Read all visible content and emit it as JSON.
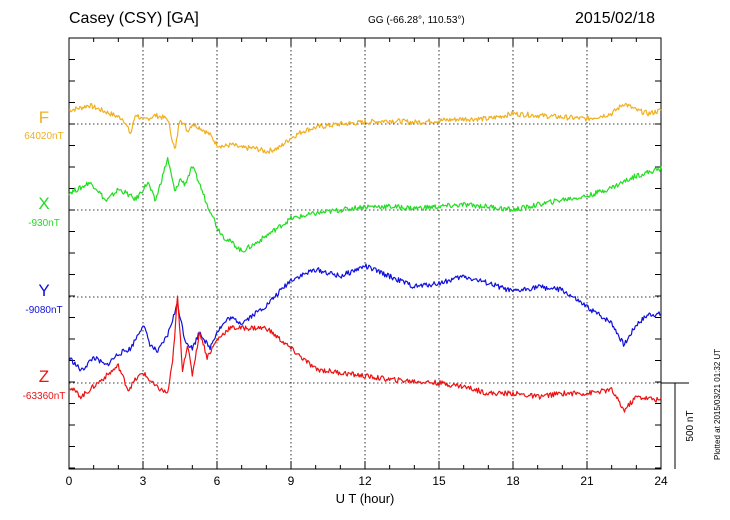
{
  "header": {
    "station": "Casey (CSY)  [GA]",
    "coords": "GG (-66.28°, 110.53°)",
    "date": "2015/02/18",
    "plotted": "Plotted at 2015/03/21 01:32 UT"
  },
  "chart_data": {
    "type": "line",
    "xlabel": "U T (hour)",
    "xlim": [
      0,
      24
    ],
    "xticks": [
      "0",
      "3",
      "6",
      "9",
      "12",
      "15",
      "18",
      "21",
      "24"
    ],
    "scale_bar": "500 nT",
    "series": [
      {
        "name": "F",
        "baseline_label": "64020nT",
        "color": "#f0b020",
        "x": [
          0,
          0.5,
          0.8,
          1.5,
          2.2,
          2.5,
          2.7,
          3.0,
          3.5,
          4.0,
          4.3,
          4.5,
          4.8,
          5.0,
          5.3,
          5.7,
          6.0,
          6.3,
          6.6,
          7.0,
          7.5,
          8.0,
          8.5,
          9.0,
          9.5,
          10,
          11,
          12,
          13,
          14,
          15,
          16,
          17,
          18,
          19,
          20,
          21,
          22,
          22.5,
          23,
          23.5,
          24
        ],
        "y": [
          80,
          95,
          110,
          70,
          30,
          -60,
          60,
          20,
          50,
          30,
          -160,
          40,
          -40,
          0,
          -20,
          -60,
          -120,
          -130,
          -120,
          -140,
          -140,
          -160,
          -140,
          -80,
          -40,
          -20,
          0,
          10,
          20,
          10,
          20,
          30,
          30,
          60,
          50,
          40,
          30,
          60,
          120,
          80,
          60,
          80
        ]
      },
      {
        "name": "X",
        "baseline_label": "-930nT",
        "color": "#22dd22",
        "x": [
          0,
          0.5,
          0.8,
          1.1,
          1.5,
          2.0,
          2.3,
          2.7,
          3.2,
          3.5,
          4.0,
          4.3,
          4.5,
          4.7,
          5.0,
          5.3,
          5.6,
          5.8,
          6.0,
          6.3,
          6.7,
          7.0,
          7.5,
          8.0,
          8.5,
          9.0,
          10,
          11,
          12,
          13,
          14,
          15,
          16,
          17,
          18,
          19,
          20,
          21,
          22,
          23,
          24
        ],
        "y": [
          100,
          130,
          160,
          130,
          50,
          120,
          100,
          60,
          160,
          50,
          300,
          100,
          180,
          150,
          250,
          150,
          30,
          -20,
          -100,
          -160,
          -200,
          -240,
          -200,
          -150,
          -100,
          -50,
          -20,
          0,
          20,
          20,
          10,
          20,
          30,
          20,
          0,
          30,
          60,
          80,
          130,
          200,
          240
        ]
      },
      {
        "name": "Y",
        "baseline_label": "-9080nT",
        "color": "#1010dd",
        "x": [
          0,
          0.5,
          1.0,
          1.5,
          2.0,
          2.5,
          3.0,
          3.3,
          3.6,
          4.0,
          4.4,
          4.7,
          5.0,
          5.3,
          5.7,
          6.0,
          6.5,
          7,
          8,
          9,
          10,
          11,
          12,
          13,
          14,
          15,
          16,
          17,
          18,
          19,
          20,
          21,
          22,
          22.5,
          23,
          23.5,
          24
        ],
        "y": [
          -350,
          -430,
          -350,
          -400,
          -330,
          -300,
          -160,
          -280,
          -320,
          -220,
          -40,
          -250,
          -300,
          -200,
          -300,
          -200,
          -120,
          -150,
          -50,
          100,
          160,
          120,
          180,
          120,
          60,
          80,
          120,
          80,
          30,
          60,
          40,
          -60,
          -150,
          -280,
          -160,
          -100,
          -100
        ]
      },
      {
        "name": "Z",
        "baseline_label": "-63360nT",
        "color": "#ee1111",
        "x": [
          0,
          0.5,
          1.0,
          1.5,
          2.0,
          2.4,
          2.7,
          3.0,
          3.5,
          4.0,
          4.2,
          4.4,
          4.6,
          4.8,
          5.0,
          5.3,
          5.6,
          6.0,
          6.5,
          7,
          8,
          9,
          10,
          11,
          12,
          13,
          14,
          15,
          16,
          17,
          18,
          19,
          20,
          21,
          22,
          22.5,
          23,
          24
        ],
        "y": [
          -20,
          -80,
          -20,
          40,
          100,
          -40,
          20,
          60,
          -20,
          -60,
          120,
          500,
          80,
          220,
          50,
          300,
          150,
          250,
          320,
          320,
          320,
          200,
          80,
          60,
          40,
          20,
          10,
          0,
          -20,
          -60,
          -60,
          -80,
          -60,
          -60,
          -40,
          -160,
          -80,
          -100
        ]
      }
    ]
  }
}
